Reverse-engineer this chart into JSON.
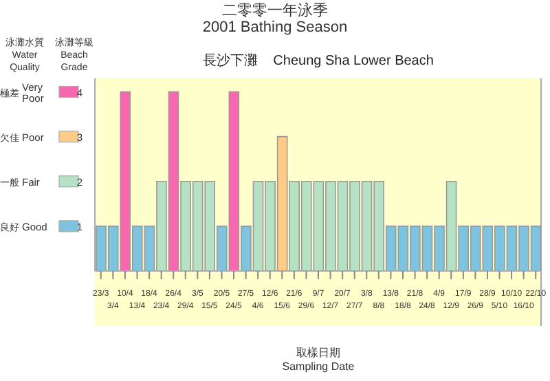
{
  "chart_data": {
    "type": "bar",
    "title": "二零零一年泳季",
    "subtitle": "2001 Bathing Season",
    "xlabel": "取樣日期 Sampling Date",
    "ylabel": "泳灘水質 Water Quality",
    "legend_title": "泳灘等級 Beach Grade",
    "categories": [
      "23/3",
      "3/4",
      "10/4",
      "13/4",
      "18/4",
      "23/4",
      "26/4",
      "29/4",
      "3/5",
      "15/5",
      "20/5",
      "24/5",
      "27/5",
      "4/6",
      "12/6",
      "15/6",
      "21/6",
      "29/6",
      "9/7",
      "12/7",
      "20/7",
      "27/7",
      "3/8",
      "8/8",
      "13/8",
      "18/8",
      "21/8",
      "24/8",
      "4/9",
      "12/9",
      "17/9",
      "26/9",
      "28/9",
      "5/10",
      "10/10",
      "16/10",
      "22/10"
    ],
    "values": [
      1,
      1,
      4,
      1,
      1,
      2,
      4,
      2,
      2,
      2,
      1,
      4,
      1,
      2,
      2,
      3,
      2,
      2,
      2,
      2,
      2,
      2,
      2,
      2,
      1,
      1,
      1,
      1,
      1,
      2,
      1,
      1,
      1,
      1,
      1,
      1,
      1
    ],
    "colors": [
      "#7ec4e0",
      "#7ec4e0",
      "#f768b0",
      "#7ec4e0",
      "#7ec4e0",
      "#b5e2c4",
      "#f768b0",
      "#b5e2c4",
      "#b5e2c4",
      "#b5e2c4",
      "#7ec4e0",
      "#f768b0",
      "#7ec4e0",
      "#b5e2c4",
      "#b5e2c4",
      "#ffcc88",
      "#b5e2c4",
      "#b5e2c4",
      "#b5e2c4",
      "#b5e2c4",
      "#b5e2c4",
      "#b5e2c4",
      "#b5e2c4",
      "#b5e2c4",
      "#7ec4e0",
      "#7ec4e0",
      "#7ec4e0",
      "#7ec4e0",
      "#7ec4e0",
      "#b5e2c4",
      "#7ec4e0",
      "#7ec4e0",
      "#7ec4e0",
      "#7ec4e0",
      "#7ec4e0",
      "#7ec4e0",
      "#7ec4e0"
    ],
    "ylim": [
      0,
      4.3
    ],
    "yticks": [
      1,
      2,
      3,
      4
    ],
    "annotations": [
      "良好 Good",
      "一般 Fair",
      "欠佳 Poor",
      "極差 Very Poor",
      "長沙下灘    Cheung Sha Lower Beach"
    ],
    "grid": false,
    "legend": false
  }
}
